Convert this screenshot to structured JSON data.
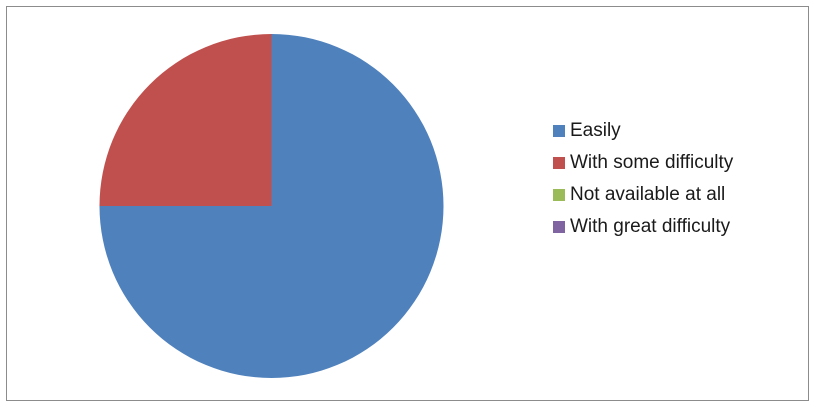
{
  "chart_data": {
    "type": "pie",
    "title": "",
    "categories": [
      "Easily",
      "With some difficulty",
      "Not available at all",
      "With great difficulty"
    ],
    "values": [
      75,
      25,
      0,
      0
    ],
    "colors": [
      "#4f81bd",
      "#c0504d",
      "#9bbb59",
      "#8064a2"
    ],
    "legend_position": "right",
    "start_angle_degrees": 0,
    "direction": "clockwise"
  },
  "legend": {
    "items": [
      {
        "label": "Easily",
        "color": "#4f81bd"
      },
      {
        "label": "With some difficulty",
        "color": "#c0504d"
      },
      {
        "label": "Not available at all",
        "color": "#9bbb59"
      },
      {
        "label": "With great difficulty",
        "color": "#8064a2"
      }
    ]
  }
}
